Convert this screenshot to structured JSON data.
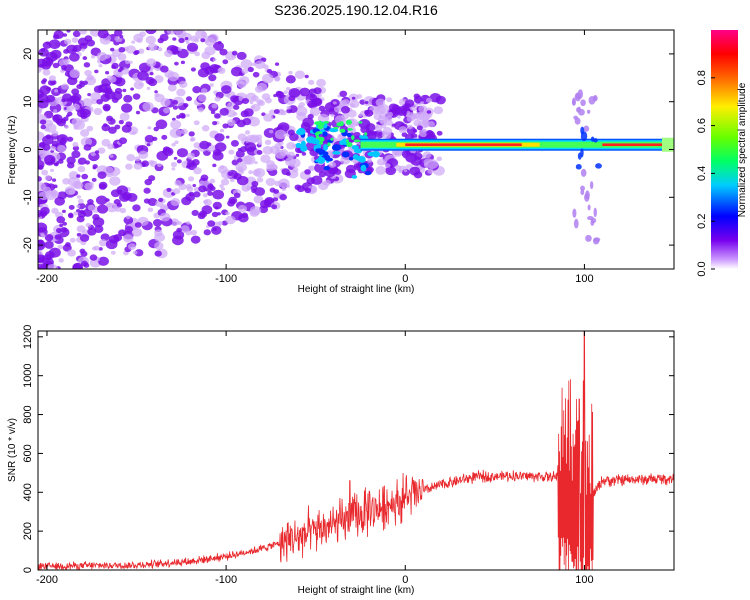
{
  "figure_title": "S236.2025.190.12.04.R16",
  "chart_data": [
    {
      "type": "heatmap",
      "xlabel": "Height of straight line (km)",
      "ylabel": "Frequency (Hz)",
      "xlim": [
        -205,
        150
      ],
      "ylim": [
        -25,
        25
      ],
      "xticks": [
        -200,
        -100,
        0,
        100
      ],
      "yticks": [
        -20,
        -10,
        0,
        10,
        20
      ],
      "colorbar": {
        "label": "Normalized spectral amplitude",
        "range": [
          0,
          1
        ],
        "ticks": [
          "0.0",
          "0.2",
          "0.4",
          "0.6",
          "0.8"
        ],
        "colors": [
          "#ffffff",
          "#cc99ff",
          "#7700ee",
          "#0000ff",
          "#00ccff",
          "#00ff66",
          "#66ff00",
          "#ffee00",
          "#ff6600",
          "#ff0000",
          "#ff0088"
        ]
      },
      "carrier_band": {
        "frequency_hz": 1,
        "start_km": -25,
        "end_km": 150,
        "disturbance_km": 100
      },
      "noise_region_km": [
        -205,
        -20
      ],
      "grid": false
    },
    {
      "type": "line",
      "xlabel": "Height of straight line (km)",
      "ylabel": "SNR (10 * v/v)",
      "xlim": [
        -205,
        150
      ],
      "ylim": [
        0,
        1230
      ],
      "xticks": [
        -200,
        -100,
        0,
        100
      ],
      "yticks": [
        0,
        200,
        400,
        600,
        800,
        1000,
        1200
      ],
      "color": "#e8282c",
      "profile": {
        "x": [
          -205,
          -150,
          -120,
          -100,
          -80,
          -60,
          -40,
          -20,
          0,
          20,
          40,
          60,
          80,
          90,
          100,
          110,
          130,
          150
        ],
        "y": [
          20,
          25,
          45,
          70,
          110,
          170,
          230,
          300,
          370,
          440,
          480,
          485,
          480,
          470,
          320,
          460,
          465,
          470
        ]
      },
      "peaks": [
        {
          "x": 100,
          "y": 1230
        },
        {
          "x": 97,
          "y": 880
        },
        {
          "x": -31,
          "y": 460
        },
        {
          "x": -20,
          "y": 405
        }
      ],
      "grid": false
    }
  ]
}
